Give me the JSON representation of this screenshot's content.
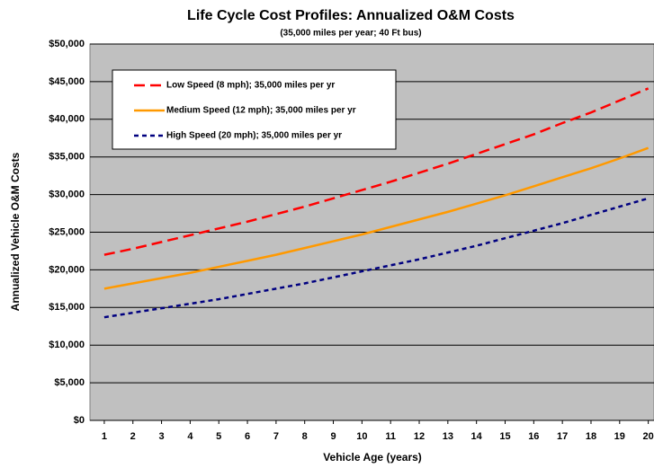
{
  "chart_data": {
    "type": "line",
    "title": "Life Cycle Cost Profiles: Annualized O&M Costs",
    "subtitle": "(35,000 miles per year; 40 Ft bus)",
    "xlabel": "Vehicle Age (years)",
    "ylabel": "Annualized Vehicle O&M Costs",
    "x": [
      1,
      2,
      3,
      4,
      5,
      6,
      7,
      8,
      9,
      10,
      11,
      12,
      13,
      14,
      15,
      16,
      17,
      18,
      19,
      20
    ],
    "xlim": [
      0.5,
      20.2
    ],
    "xticks": [
      1,
      2,
      3,
      4,
      5,
      6,
      7,
      8,
      9,
      10,
      11,
      12,
      13,
      14,
      15,
      16,
      17,
      18,
      19,
      20
    ],
    "ylim": [
      0,
      50000
    ],
    "yticks": [
      {
        "value": 0,
        "label": "$0"
      },
      {
        "value": 5000,
        "label": "$5,000"
      },
      {
        "value": 10000,
        "label": "$10,000"
      },
      {
        "value": 15000,
        "label": "$15,000"
      },
      {
        "value": 20000,
        "label": "$20,000"
      },
      {
        "value": 25000,
        "label": "$25,000"
      },
      {
        "value": 30000,
        "label": "$30,000"
      },
      {
        "value": 35000,
        "label": "$35,000"
      },
      {
        "value": 40000,
        "label": "$40,000"
      },
      {
        "value": 45000,
        "label": "$45,000"
      },
      {
        "value": 50000,
        "label": "$50,000"
      }
    ],
    "grid": true,
    "legend": "upper left",
    "series": [
      {
        "name": "Low Speed (8 mph); 35,000 miles per yr",
        "color": "#ff0000",
        "linestyle": "dashed",
        "values": [
          22000,
          22800,
          23700,
          24600,
          25500,
          26400,
          27400,
          28400,
          29500,
          30600,
          31700,
          32900,
          34100,
          35400,
          36700,
          38000,
          39500,
          40900,
          42500,
          44100
        ]
      },
      {
        "name": "Medium Speed (12 mph); 35,000 miles per yr",
        "color": "#ff9900",
        "linestyle": "solid",
        "values": [
          17500,
          18200,
          18900,
          19600,
          20400,
          21200,
          22000,
          22900,
          23800,
          24700,
          25700,
          26700,
          27700,
          28800,
          29900,
          31100,
          32300,
          33500,
          34800,
          36200
        ]
      },
      {
        "name": "High Speed (20 mph); 35,000 miles per yr",
        "color": "#000080",
        "linestyle": "dotted",
        "values": [
          13700,
          14300,
          14900,
          15500,
          16100,
          16800,
          17500,
          18200,
          19000,
          19800,
          20600,
          21400,
          22300,
          23200,
          24200,
          25200,
          26200,
          27300,
          28400,
          29500
        ]
      }
    ]
  }
}
